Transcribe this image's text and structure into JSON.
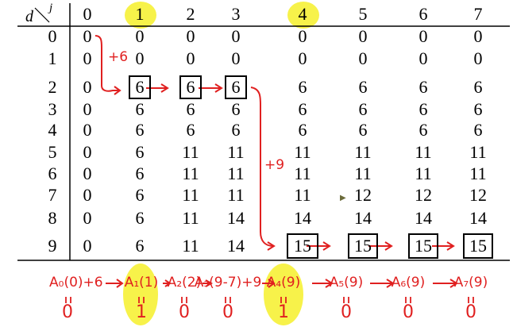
{
  "table": {
    "corner_row_label": "d",
    "corner_col_label": "j",
    "columns": [
      "0",
      "1",
      "2",
      "3",
      "4",
      "5",
      "6",
      "7"
    ],
    "rows": [
      {
        "d": "0",
        "cells": [
          "0",
          "0",
          "0",
          "0",
          "0",
          "0",
          "0",
          "0"
        ]
      },
      {
        "d": "1",
        "cells": [
          "0",
          "0",
          "0",
          "0",
          "0",
          "0",
          "0",
          "0"
        ]
      },
      {
        "d": "2",
        "cells": [
          "0",
          "6",
          "6",
          "6",
          "6",
          "6",
          "6",
          "6"
        ]
      },
      {
        "d": "3",
        "cells": [
          "0",
          "6",
          "6",
          "6",
          "6",
          "6",
          "6",
          "6"
        ]
      },
      {
        "d": "4",
        "cells": [
          "0",
          "6",
          "6",
          "6",
          "6",
          "6",
          "6",
          "6"
        ]
      },
      {
        "d": "5",
        "cells": [
          "0",
          "6",
          "11",
          "11",
          "11",
          "11",
          "11",
          "11"
        ]
      },
      {
        "d": "6",
        "cells": [
          "0",
          "6",
          "11",
          "11",
          "11",
          "11",
          "11",
          "11"
        ]
      },
      {
        "d": "7",
        "cells": [
          "0",
          "6",
          "11",
          "11",
          "11",
          "12",
          "12",
          "12"
        ]
      },
      {
        "d": "8",
        "cells": [
          "0",
          "6",
          "11",
          "14",
          "14",
          "14",
          "14",
          "14"
        ]
      },
      {
        "d": "9",
        "cells": [
          "0",
          "6",
          "11",
          "14",
          "15",
          "15",
          "15",
          "15"
        ]
      }
    ],
    "boxed_cells": [
      [
        2,
        1
      ],
      [
        2,
        2
      ],
      [
        2,
        3
      ],
      [
        9,
        4
      ],
      [
        9,
        5
      ],
      [
        9,
        6
      ],
      [
        9,
        7
      ]
    ],
    "highlighted_columns": [
      "1",
      "4"
    ]
  },
  "annotations": {
    "plus_six": "+6",
    "plus_nine": "+9",
    "accent_color": "#e02020",
    "highlight_color": "#f7f24a"
  },
  "recurrence": {
    "terms": [
      {
        "label": "A₀(0)+6",
        "bit": "0"
      },
      {
        "label": "A₁(1)",
        "bit": "1"
      },
      {
        "label": "A₂(2)",
        "bit": "0"
      },
      {
        "label": "A₃(9-7)+9",
        "bit": "0"
      },
      {
        "label": "A₄(9)",
        "bit": "1"
      },
      {
        "label": "A₅(9)",
        "bit": "0"
      },
      {
        "label": "A₆(9)",
        "bit": "0"
      },
      {
        "label": "A₇(9)",
        "bit": "0"
      }
    ]
  }
}
